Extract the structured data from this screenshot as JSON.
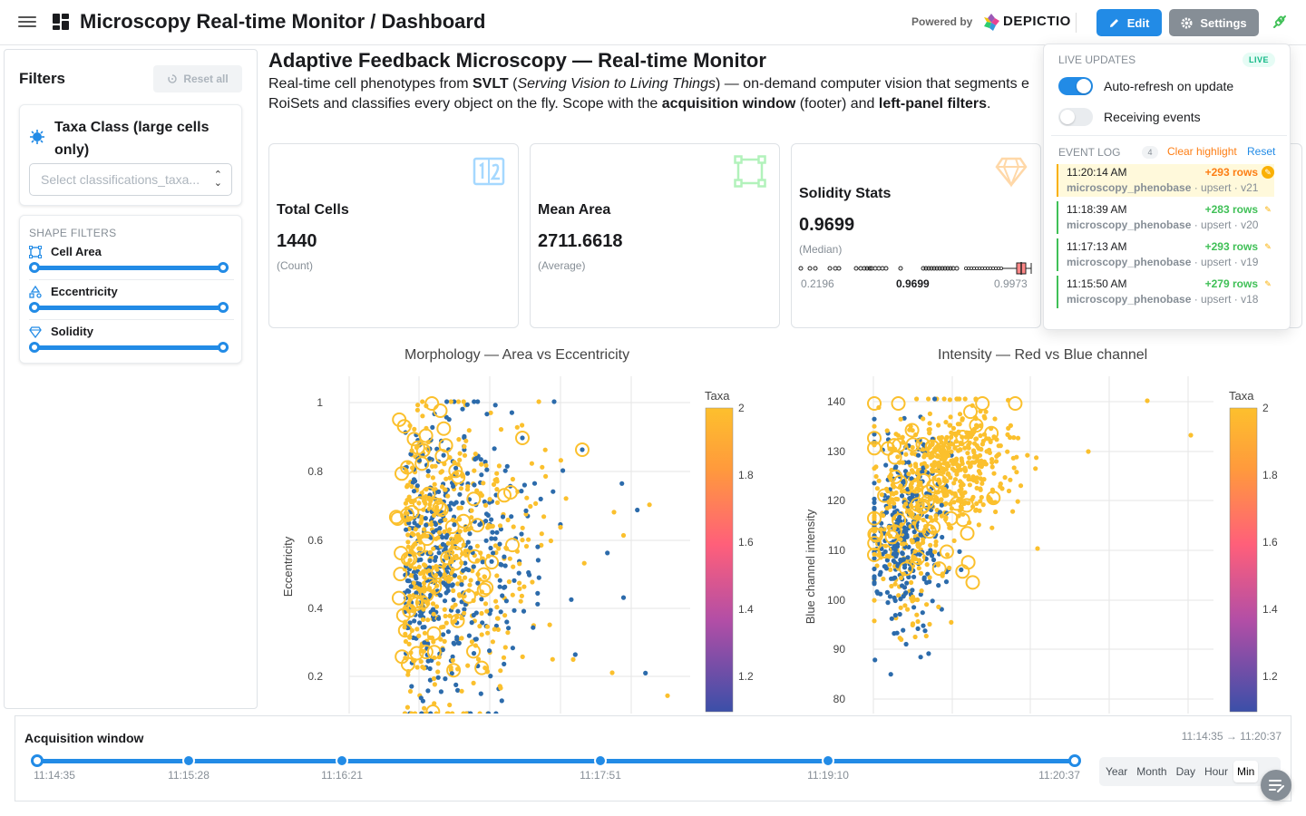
{
  "header": {
    "title": "Microscopy Real-time Monitor / Dashboard",
    "powered_by": "Powered by",
    "brand": "DEPICTIO",
    "edit_label": "Edit",
    "settings_label": "Settings"
  },
  "sidebar": {
    "title": "Filters",
    "reset_all": "Reset all",
    "taxa_filter": {
      "title": "Taxa Class (large cells only)",
      "placeholder": "Select classifications_taxa..."
    },
    "shape_filters": {
      "heading": "SHAPE FILTERS",
      "items": [
        {
          "label": "Cell Area",
          "range": [
            0,
            1
          ]
        },
        {
          "label": "Eccentricity",
          "range": [
            0,
            1
          ]
        },
        {
          "label": "Solidity",
          "range": [
            0,
            1
          ]
        }
      ]
    }
  },
  "main": {
    "title": "Adaptive Feedback Microscopy — Real-time Monitor",
    "desc_1": "Real-time cell phenotypes from ",
    "desc_svlt": "SVLT",
    "desc_2": " (",
    "desc_serving": "Serving Vision to Living Things",
    "desc_3": ") — on-demand computer vision that segments e",
    "desc_4": "RoiSets and classifies every object on the fly. Scope with the ",
    "desc_acq": "acquisition window",
    "desc_5": " (footer) and ",
    "desc_lp": "left-panel filters",
    "desc_6": "."
  },
  "metrics": [
    {
      "title": "Total Cells",
      "value": "1440",
      "sub": "(Count)"
    },
    {
      "title": "Mean Area",
      "value": "2711.6618",
      "sub": "(Average)"
    },
    {
      "title": "Solidity Stats",
      "value": "0.9699",
      "sub": "(Median)",
      "min": "0.2196",
      "median": "0.9699",
      "max": "0.9973"
    }
  ],
  "charts": {
    "left_title": "Morphology — Area vs Eccentricity",
    "right_title": "Intensity — Red vs Blue channel"
  },
  "chart_data": [
    {
      "type": "scatter",
      "title": "Morphology — Area vs Eccentricity",
      "ylabel": "Eccentricity",
      "y_ticks": [
        "1",
        "0.8",
        "0.6",
        "0.4",
        "0.2"
      ],
      "colorbar": {
        "title": "Taxa",
        "ticks": [
          "2",
          "1.8",
          "1.6",
          "1.4",
          "1.2"
        ]
      },
      "series_colors": {
        "taxa_2": "#fbc02d",
        "taxa_1": "#2c6bab"
      }
    },
    {
      "type": "scatter",
      "title": "Intensity — Red vs Blue channel",
      "ylabel": "Blue channel intensity",
      "y_ticks": [
        "140",
        "130",
        "120",
        "110",
        "100",
        "90",
        "80"
      ],
      "colorbar": {
        "title": "Taxa",
        "ticks": [
          "2",
          "1.8",
          "1.6",
          "1.4",
          "1.2"
        ]
      },
      "series_colors": {
        "taxa_2": "#fbc02d",
        "taxa_1": "#2c6bab"
      }
    }
  ],
  "live": {
    "heading": "LIVE UPDATES",
    "badge": "LIVE",
    "auto_refresh": "Auto-refresh on update",
    "receiving": "Receiving events",
    "event_log": "EVENT LOG",
    "count": "4",
    "clear_highlight": "Clear highlight",
    "reset": "Reset",
    "events": [
      {
        "time": "11:20:14 AM",
        "rows": "+293 rows",
        "source": "microscopy_phenobase",
        "meta": " · upsert · v21"
      },
      {
        "time": "11:18:39 AM",
        "rows": "+283 rows",
        "source": "microscopy_phenobase",
        "meta": " · upsert · v20"
      },
      {
        "time": "11:17:13 AM",
        "rows": "+293 rows",
        "source": "microscopy_phenobase",
        "meta": " · upsert · v19"
      },
      {
        "time": "11:15:50 AM",
        "rows": "+279 rows",
        "source": "microscopy_phenobase",
        "meta": " · upsert · v18"
      }
    ]
  },
  "footer": {
    "title": "Acquisition window",
    "range": "11:14:35 → 11:20:37",
    "marks": [
      "11:14:35",
      "11:15:28",
      "11:16:21",
      "11:17:51",
      "11:19:10",
      "11:20:37"
    ],
    "granularity": [
      "Year",
      "Month",
      "Day",
      "Hour",
      "Min"
    ],
    "active": "Min"
  }
}
